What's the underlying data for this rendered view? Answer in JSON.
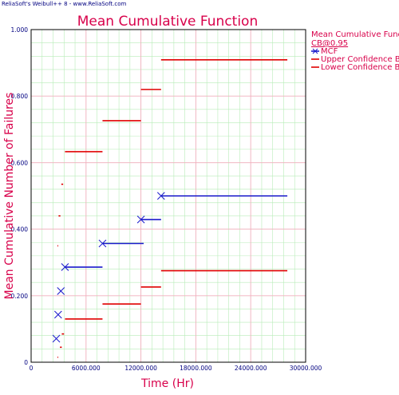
{
  "watermark": "ReliaSoft's Weibull++ 8 - www.ReliaSoft.com",
  "chart_data": {
    "type": "line",
    "title": "Mean Cumulative Function",
    "xlabel": "Time (Hr)",
    "ylabel": "Mean Cumulative Number of Failures",
    "xlim": [
      0,
      30000
    ],
    "ylim": [
      0,
      1.0
    ],
    "x_ticks": [
      0,
      6000,
      12000,
      18000,
      24000,
      30000
    ],
    "x_tick_labels": [
      "0",
      "6000.000",
      "12000.000",
      "18000.000",
      "24000.000",
      "30000.000"
    ],
    "y_ticks": [
      0,
      0.2,
      0.4,
      0.6,
      0.8,
      1.0
    ],
    "y_tick_labels": [
      "0",
      "0.200",
      "0.400",
      "0.600",
      "0.800",
      "1.000"
    ],
    "grid": true,
    "legend_position": "right",
    "legend_header": [
      "Mean Cumulative Function",
      "CB@0.95"
    ],
    "legend": [
      "MCF",
      "Upper Confidence Bounds",
      "Lower Confidence Bounds"
    ],
    "colors": {
      "mcf": "#1a1acc",
      "bounds": "#e00000",
      "title": "#d8004a",
      "axis_text": "#000080",
      "grid_major": "#f4b0c0",
      "grid_minor": "#b8ecb8"
    },
    "series": [
      {
        "name": "MCF",
        "points": [
          {
            "x": 2750,
            "y": 0.071
          },
          {
            "x": 2950,
            "y": 0.143
          },
          {
            "x": 3250,
            "y": 0.214
          },
          {
            "x": 3700,
            "y": 0.286
          },
          {
            "x": 7800,
            "y": 0.357
          },
          {
            "x": 12000,
            "y": 0.429
          },
          {
            "x": 14200,
            "y": 0.5
          }
        ],
        "segments": [
          {
            "x0": 3700,
            "x1": 7800,
            "y": 0.286
          },
          {
            "x0": 7800,
            "x1": 12300,
            "y": 0.357
          },
          {
            "x0": 12000,
            "x1": 14200,
            "y": 0.429
          },
          {
            "x0": 14200,
            "x1": 28000,
            "y": 0.5
          }
        ]
      },
      {
        "name": "Upper Confidence Bounds",
        "segments": [
          {
            "x0": 2880,
            "x1": 2960,
            "y": 0.35
          },
          {
            "x0": 3000,
            "x1": 3200,
            "y": 0.44
          },
          {
            "x0": 3300,
            "x1": 3500,
            "y": 0.535
          },
          {
            "x0": 3700,
            "x1": 7800,
            "y": 0.633
          },
          {
            "x0": 7800,
            "x1": 12000,
            "y": 0.726
          },
          {
            "x0": 12000,
            "x1": 14200,
            "y": 0.82
          },
          {
            "x0": 14200,
            "x1": 28000,
            "y": 0.909
          }
        ]
      },
      {
        "name": "Lower Confidence Bounds",
        "segments": [
          {
            "x0": 2880,
            "x1": 2960,
            "y": 0.015
          },
          {
            "x0": 3150,
            "x1": 3350,
            "y": 0.045
          },
          {
            "x0": 3350,
            "x1": 3600,
            "y": 0.085
          },
          {
            "x0": 3700,
            "x1": 7800,
            "y": 0.13
          },
          {
            "x0": 7800,
            "x1": 12000,
            "y": 0.175
          },
          {
            "x0": 12000,
            "x1": 14200,
            "y": 0.226
          },
          {
            "x0": 14200,
            "x1": 28000,
            "y": 0.275
          }
        ]
      }
    ]
  }
}
